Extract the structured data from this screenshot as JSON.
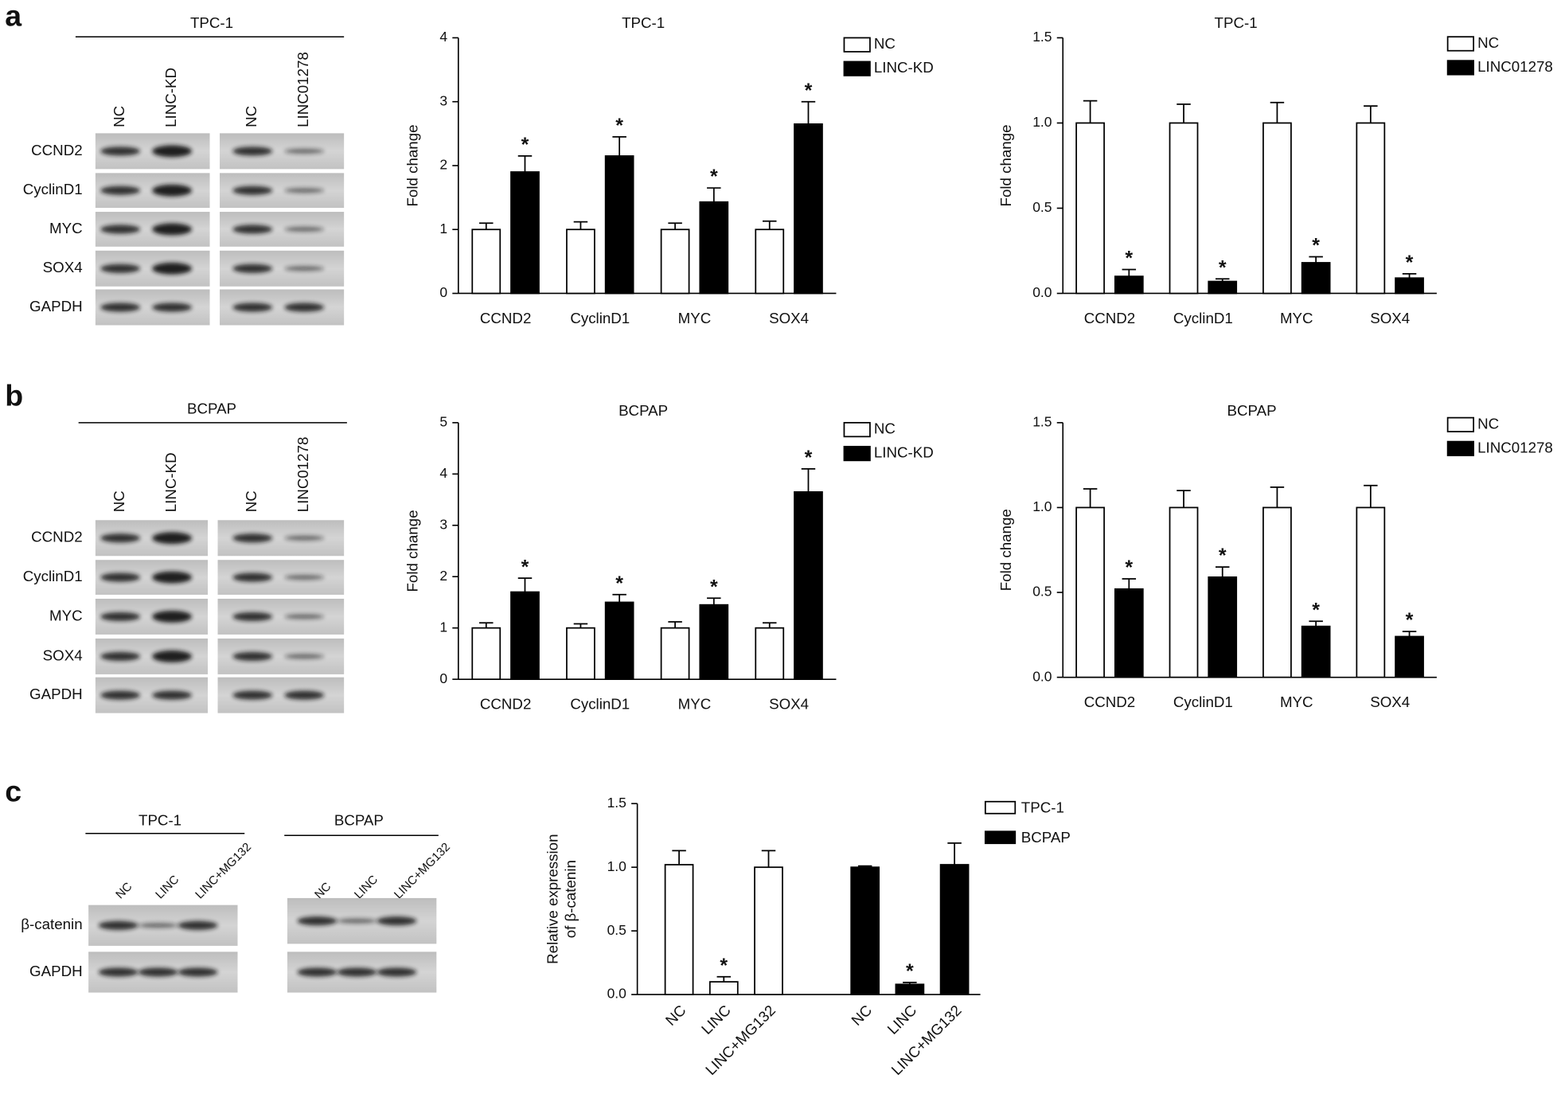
{
  "panel_labels": [
    "a",
    "b",
    "c"
  ],
  "blots": [
    {
      "header": "TPC-1",
      "lanes": [
        "NC",
        "LINC-KD",
        "NC",
        "LINC01278"
      ],
      "rows": [
        "CCND2",
        "CyclinD1",
        "MYC",
        "SOX4",
        "GAPDH"
      ]
    },
    {
      "header": "BCPAP",
      "lanes": [
        "NC",
        "LINC-KD",
        "NC",
        "LINC01278"
      ],
      "rows": [
        "CCND2",
        "CyclinD1",
        "MYC",
        "SOX4",
        "GAPDH"
      ]
    },
    {
      "header": "TPC-1",
      "lanes": [
        "NC",
        "LINC",
        "LINC+MG132"
      ],
      "rows": [
        "β-catenin",
        "GAPDH"
      ]
    },
    {
      "header": "BCPAP",
      "lanes": [
        "NC",
        "LINC",
        "LINC+MG132"
      ]
    }
  ],
  "chart_data": [
    {
      "type": "bar",
      "title": "TPC-1",
      "ylabel": [
        "Fold change"
      ],
      "categories": [
        "CCND2",
        "CyclinD1",
        "MYC",
        "SOX4"
      ],
      "ylim": [
        0,
        4
      ],
      "yticks": [
        0,
        1,
        2,
        3,
        4
      ],
      "series": [
        {
          "name": "NC",
          "color": "#ffffff",
          "values": [
            1,
            1,
            1,
            1
          ],
          "errors": [
            0.1,
            0.12,
            0.1,
            0.13
          ]
        },
        {
          "name": "LINC-KD",
          "color": "#000000",
          "values": [
            1.9,
            2.15,
            1.43,
            2.65
          ],
          "errors": [
            0.25,
            0.3,
            0.22,
            0.35
          ],
          "significance": [
            "*",
            "*",
            "*",
            "*"
          ]
        }
      ]
    },
    {
      "type": "bar",
      "title": "TPC-1",
      "ylabel": [
        "Fold change"
      ],
      "categories": [
        "CCND2",
        "CyclinD1",
        "MYC",
        "SOX4"
      ],
      "ylim": [
        0,
        1.5
      ],
      "yticks": [
        {
          "value": 0,
          "label": "0.0"
        },
        0.5,
        {
          "value": 1,
          "label": "1.0"
        },
        1.5
      ],
      "series": [
        {
          "name": "NC",
          "color": "#ffffff",
          "values": [
            1,
            1,
            1,
            1
          ],
          "errors": [
            0.13,
            0.11,
            0.12,
            0.1
          ]
        },
        {
          "name": "LINC01278",
          "color": "#000000",
          "values": [
            0.1,
            0.07,
            0.18,
            0.09
          ],
          "errors": [
            0.04,
            0.015,
            0.035,
            0.025
          ],
          "significance": [
            "*",
            "*",
            "*",
            "*"
          ]
        }
      ]
    },
    {
      "type": "bar",
      "title": "BCPAP",
      "ylabel": [
        "Fold change"
      ],
      "categories": [
        "CCND2",
        "CyclinD1",
        "MYC",
        "SOX4"
      ],
      "ylim": [
        0,
        5
      ],
      "yticks": [
        0,
        1,
        2,
        3,
        4,
        5
      ],
      "series": [
        {
          "name": "NC",
          "color": "#ffffff",
          "values": [
            1,
            1,
            1,
            1
          ],
          "errors": [
            0.1,
            0.08,
            0.12,
            0.1
          ]
        },
        {
          "name": "LINC-KD",
          "color": "#000000",
          "values": [
            1.7,
            1.5,
            1.45,
            3.65
          ],
          "errors": [
            0.27,
            0.15,
            0.13,
            0.45
          ],
          "significance": [
            "*",
            "*",
            "*",
            "*"
          ]
        }
      ]
    },
    {
      "type": "bar",
      "title": "BCPAP",
      "ylabel": [
        "Fold change"
      ],
      "categories": [
        "CCND2",
        "CyclinD1",
        "MYC",
        "SOX4"
      ],
      "ylim": [
        0,
        1.5
      ],
      "yticks": [
        {
          "value": 0,
          "label": "0.0"
        },
        0.5,
        {
          "value": 1,
          "label": "1.0"
        },
        1.5
      ],
      "series": [
        {
          "name": "NC",
          "color": "#ffffff",
          "values": [
            1,
            1,
            1,
            1
          ],
          "errors": [
            0.11,
            0.1,
            0.12,
            0.13
          ]
        },
        {
          "name": "LINC01278",
          "color": "#000000",
          "values": [
            0.52,
            0.59,
            0.3,
            0.24
          ],
          "errors": [
            0.06,
            0.06,
            0.03,
            0.03
          ],
          "significance": [
            "*",
            "*",
            "*",
            "*"
          ]
        }
      ]
    },
    {
      "type": "bar",
      "group_by": "series",
      "ylabel": [
        "Relative expression",
        "of β-catenin"
      ],
      "categories": [
        "NC",
        "LINC",
        "LINC+MG132"
      ],
      "ylim": [
        0,
        1.5
      ],
      "yticks": [
        {
          "value": 0,
          "label": "0.0"
        },
        0.5,
        {
          "value": 1,
          "label": "1.0"
        },
        1.5
      ],
      "series": [
        {
          "name": "TPC-1",
          "color": "#ffffff",
          "values": [
            1.02,
            0.1,
            1.0
          ],
          "errors": [
            0.11,
            0.04,
            0.13
          ],
          "significance": [
            null,
            "*",
            null
          ]
        },
        {
          "name": "BCPAP",
          "color": "#000000",
          "values": [
            1.0,
            0.08,
            1.02
          ],
          "errors": [
            0.01,
            0.015,
            0.17
          ],
          "significance": [
            null,
            "*",
            null
          ]
        }
      ]
    }
  ]
}
